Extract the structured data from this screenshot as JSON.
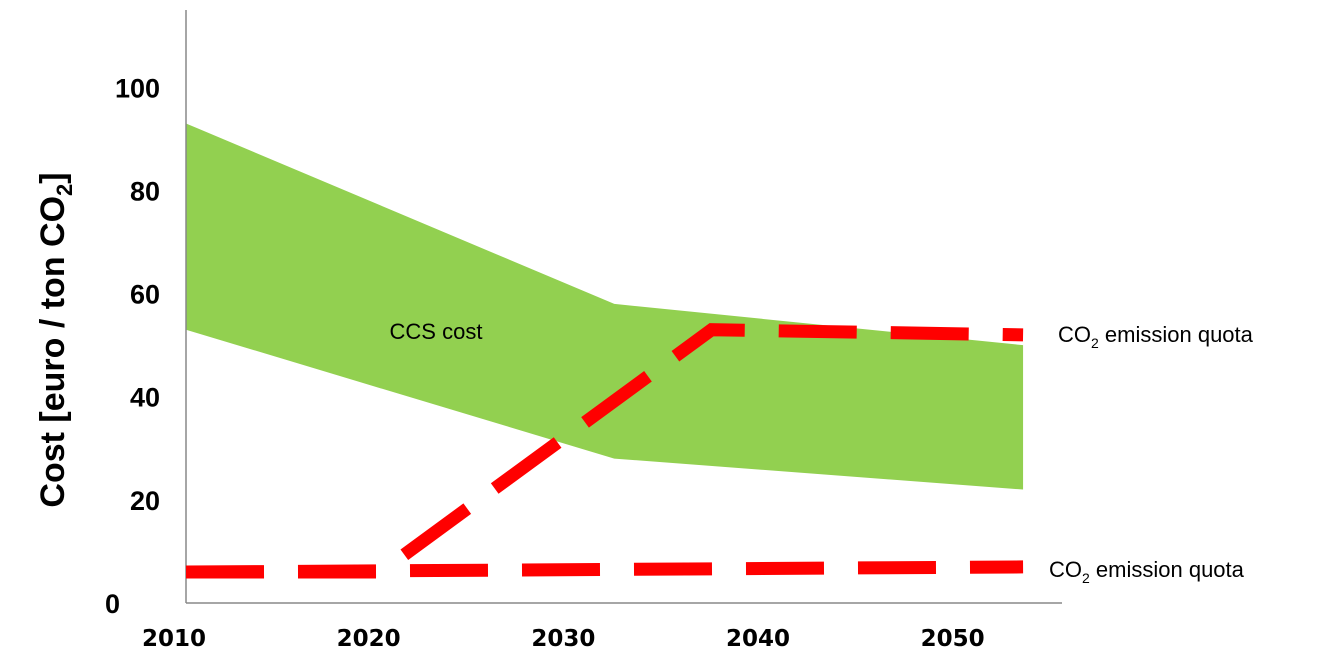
{
  "chart_data": {
    "type": "area",
    "x_ticks": [
      "2010",
      "2020",
      "2030",
      "2040",
      "2050"
    ],
    "y_ticks": [
      "0",
      "20",
      "40",
      "60",
      "80",
      "100"
    ],
    "ylim": [
      0,
      115
    ],
    "xlim": [
      2010,
      2055
    ],
    "ylabel": {
      "main": "Cost [euro / ton CO",
      "sub": "2",
      "close": "]"
    },
    "band": {
      "label": "CCS cost",
      "color": "#92d050",
      "x": [
        2010,
        2032,
        2053
      ],
      "upper": [
        93,
        58,
        50
      ],
      "lower": [
        53,
        28,
        22
      ]
    },
    "series": [
      {
        "label": {
          "pre": "CO",
          "sub": "2",
          "post": " emission quota"
        },
        "color": "#ff0000",
        "style": "dashed",
        "x": [
          2010,
          2020,
          2037,
          2053
        ],
        "y": [
          6,
          6,
          53,
          52
        ]
      },
      {
        "label": {
          "pre": "CO",
          "sub": "2",
          "post": " emission quota"
        },
        "color": "#ff0000",
        "style": "dashed",
        "x": [
          2010,
          2053
        ],
        "y": [
          6,
          7
        ]
      }
    ]
  }
}
